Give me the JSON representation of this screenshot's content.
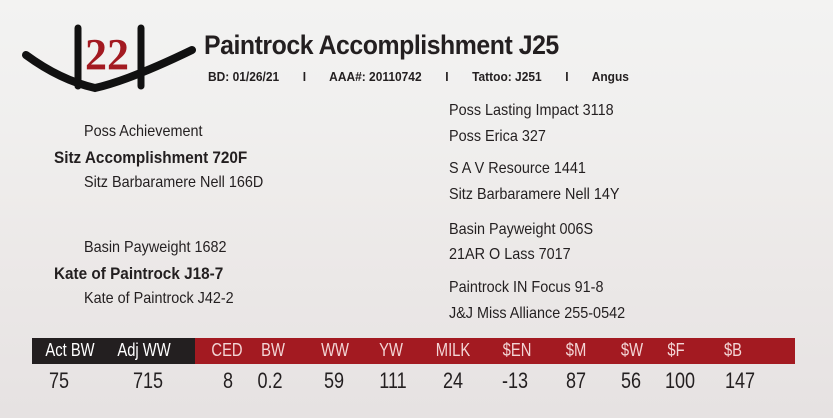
{
  "brand": {
    "number": "22",
    "color": "#a31a21"
  },
  "title": "Paintrock Accomplishment J25",
  "details": [
    "BD: 01/26/21",
    "I",
    "AAA#: 20110742",
    "I",
    "Tattoo:  J251",
    "I",
    "Angus"
  ],
  "pedigree": {
    "sire": "Sitz Accomplishment 720F",
    "sire_sire": "Poss Achievement",
    "sire_dam": "Sitz Barbaramere Nell 166D",
    "dam": "Kate of Paintrock J18-7",
    "dam_sire": "Basin Payweight 1682",
    "dam_dam": "Kate of Paintrock J42-2",
    "gen3": [
      "Poss Lasting Impact 3118",
      "Poss Erica 327",
      "S A V Resource 1441",
      "Sitz Barbaramere Nell 14Y",
      "Basin Payweight 006S",
      "21AR O Lass 7017",
      "Paintrock IN Focus 91-8",
      "J&J Miss Alliance 255-0542"
    ]
  },
  "stats": {
    "headers": [
      "Act BW",
      "Adj WW",
      "CED",
      "BW",
      "WW",
      "YW",
      "MILK",
      "$EN",
      "$M",
      "$W",
      "$F",
      "$B"
    ],
    "values": [
      "75",
      "715",
      "8",
      "0.2",
      "59",
      "111",
      "24",
      "-13",
      "87",
      "56",
      "100",
      "147"
    ],
    "colors": {
      "black": "#231f20",
      "red": "#a31a21"
    }
  }
}
